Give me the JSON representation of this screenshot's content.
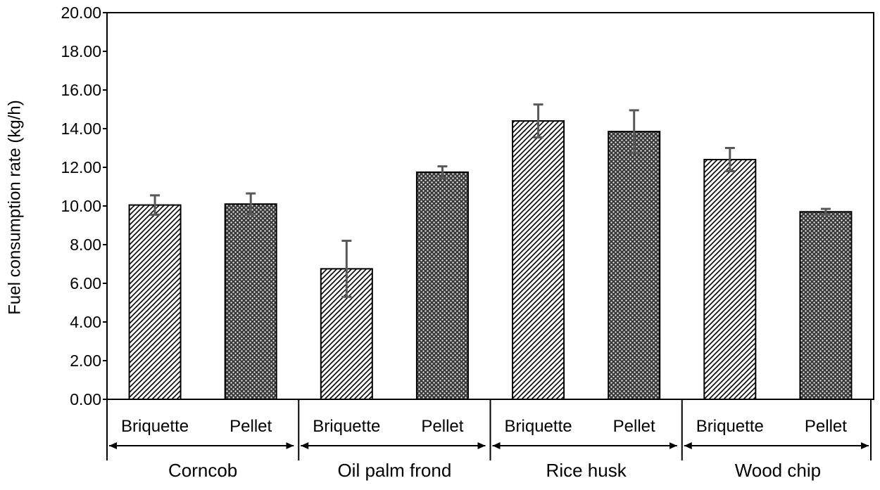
{
  "chart_data": {
    "type": "bar",
    "title": "",
    "xlabel": "",
    "ylabel": "Fuel consumption rate (kg/h)",
    "ylim": [
      0,
      20
    ],
    "yticks": [
      "0.00",
      "2.00",
      "4.00",
      "6.00",
      "8.00",
      "10.00",
      "12.00",
      "14.00",
      "16.00",
      "18.00",
      "20.00"
    ],
    "grid": false,
    "legend": "none",
    "groups": [
      {
        "name": "Corncob",
        "bars": [
          {
            "label": "Briquette",
            "value": 10.05,
            "error": 0.5,
            "pattern": "diagonal"
          },
          {
            "label": "Pellet",
            "value": 10.1,
            "error": 0.55,
            "pattern": "dotted"
          }
        ]
      },
      {
        "name": "Oil palm frond",
        "bars": [
          {
            "label": "Briquette",
            "value": 6.75,
            "error": 1.45,
            "pattern": "diagonal"
          },
          {
            "label": "Pellet",
            "value": 11.75,
            "error": 0.3,
            "pattern": "dotted"
          }
        ]
      },
      {
        "name": "Rice husk",
        "bars": [
          {
            "label": "Briquette",
            "value": 14.4,
            "error": 0.85,
            "pattern": "diagonal"
          },
          {
            "label": "Pellet",
            "value": 13.85,
            "error": 1.1,
            "pattern": "dotted"
          }
        ]
      },
      {
        "name": "Wood chip",
        "bars": [
          {
            "label": "Briquette",
            "value": 12.4,
            "error": 0.6,
            "pattern": "diagonal"
          },
          {
            "label": "Pellet",
            "value": 9.7,
            "error": 0.15,
            "pattern": "dotted"
          }
        ]
      }
    ],
    "colors": {
      "bar_outline": "#000000",
      "error_bar": "#595959",
      "pattern_ink": "#000000"
    }
  }
}
